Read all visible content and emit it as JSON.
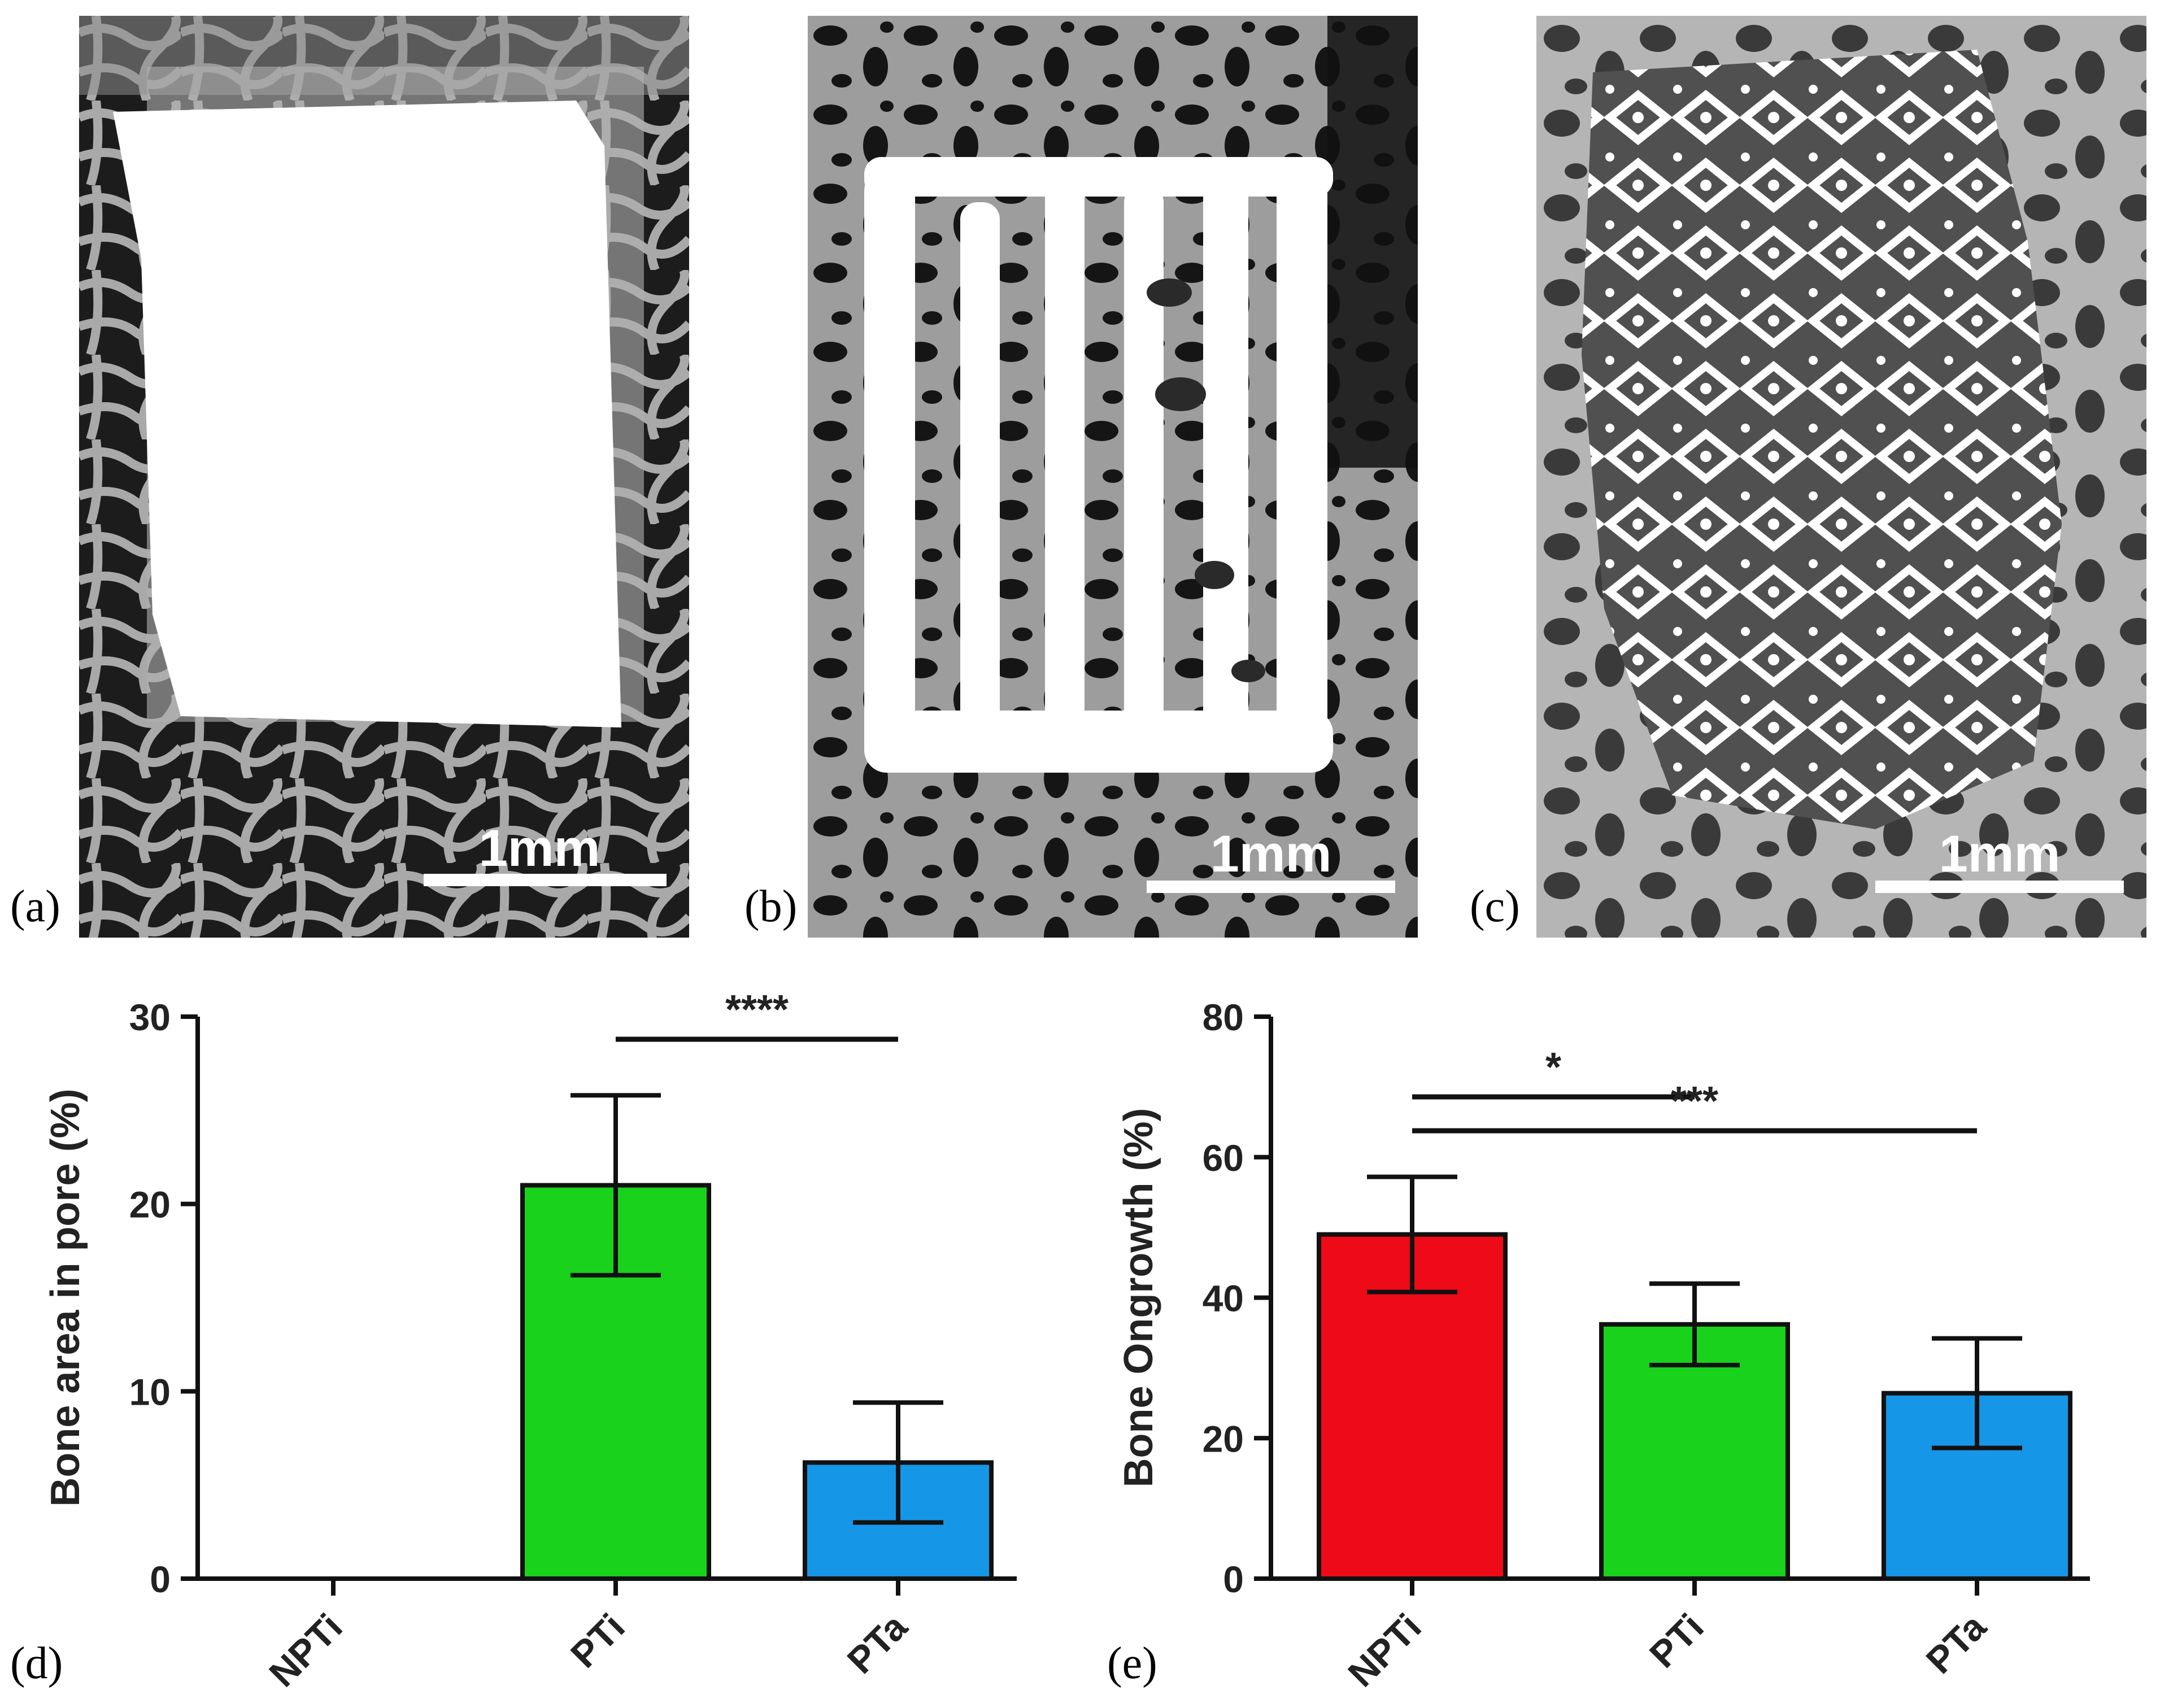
{
  "panels": [
    {
      "label": "(a)",
      "scale_bar": "1mm"
    },
    {
      "label": "(b)",
      "scale_bar": "1mm"
    },
    {
      "label": "(c)",
      "scale_bar": "1mm"
    },
    {
      "label": "(d)"
    },
    {
      "label": "(e)"
    }
  ],
  "colors": {
    "NPTi": "#ee0a16",
    "PTi": "#19d21c",
    "PTa": "#1596e6",
    "bone": "#a8a8a8",
    "marrow": "#1a1a1a",
    "implant": "#ffffff"
  },
  "chart_data": [
    {
      "type": "bar",
      "panel": "(d)",
      "categories": [
        "NPTi",
        "PTi",
        "PTa"
      ],
      "values": [
        0,
        21.0,
        6.2
      ],
      "errors": [
        0,
        4.8,
        3.2
      ],
      "ylabel": "Bone area in pore (%)",
      "ylim": [
        0,
        30
      ],
      "yticks": [
        0,
        10,
        20,
        30
      ],
      "significance": [
        {
          "from": "PTi",
          "to": "PTa",
          "label": "****"
        }
      ]
    },
    {
      "type": "bar",
      "panel": "(e)",
      "categories": [
        "NPTi",
        "PTi",
        "PTa"
      ],
      "values": [
        49.0,
        36.2,
        26.4
      ],
      "errors": [
        8.2,
        5.8,
        7.8
      ],
      "ylabel": "Bone Ongrowth (%)",
      "ylim": [
        0,
        80
      ],
      "yticks": [
        0,
        20,
        40,
        60,
        80
      ],
      "significance": [
        {
          "from": "NPTi",
          "to": "PTi",
          "label": "*"
        },
        {
          "from": "NPTi",
          "to": "PTa",
          "label": "***"
        }
      ]
    }
  ]
}
